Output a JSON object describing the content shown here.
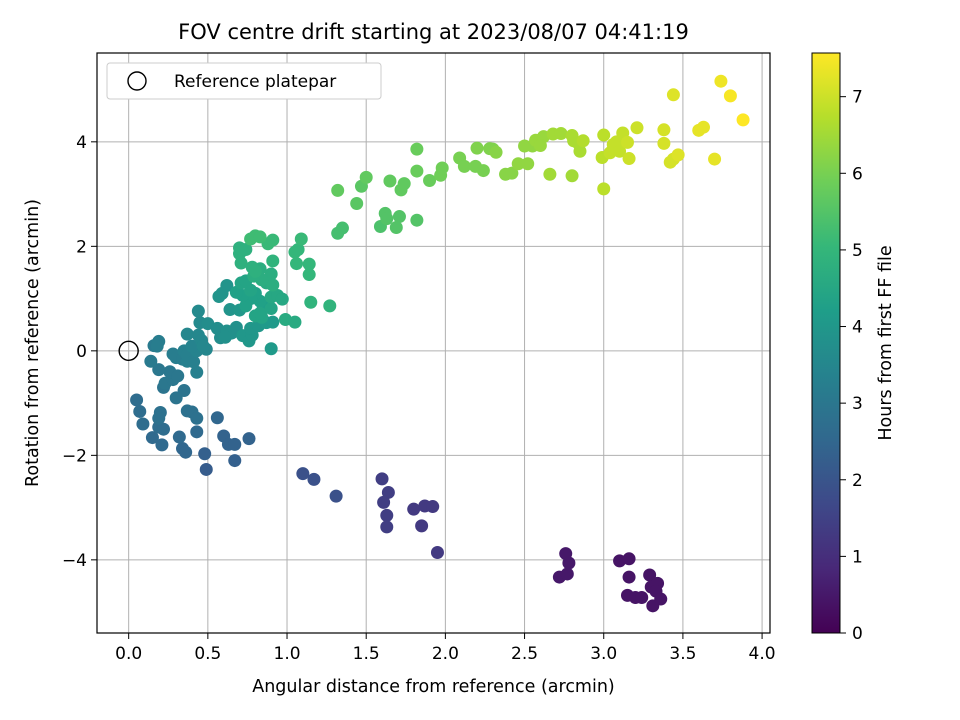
{
  "chart_data": {
    "type": "scatter",
    "title": "FOV centre drift starting at 2023/08/07 04:41:19",
    "xlabel": "Angular distance from reference (arcmin)",
    "ylabel": "Rotation from reference (arcmin)",
    "xlim": [
      -0.2,
      4.05
    ],
    "ylim": [
      -5.4,
      5.7
    ],
    "xticks": [
      0.0,
      0.5,
      1.0,
      1.5,
      2.0,
      2.5,
      3.0,
      3.5,
      4.0
    ],
    "xtick_labels": [
      "0.0",
      "0.5",
      "1.0",
      "1.5",
      "2.0",
      "2.5",
      "3.0",
      "3.5",
      "4.0"
    ],
    "yticks": [
      -4,
      -2,
      0,
      2,
      4
    ],
    "ytick_labels": [
      "−4",
      "−2",
      "0",
      "2",
      "4"
    ],
    "grid": true,
    "legend": {
      "label": "Reference platepar",
      "placement": "upper left"
    },
    "reference_point": {
      "x": 0.0,
      "y": 0.0,
      "marker": "open-circle"
    },
    "colorbar": {
      "label": "Hours from first FF file",
      "colormap": "viridis",
      "range": [
        0,
        7.57
      ],
      "ticks": [
        0,
        1,
        2,
        3,
        4,
        5,
        6,
        7
      ],
      "tick_labels": [
        "0",
        "1",
        "2",
        "3",
        "4",
        "5",
        "6",
        "7"
      ]
    },
    "colormap_stops": [
      "#440154",
      "#482878",
      "#3e4989",
      "#31688e",
      "#26828e",
      "#1f9e89",
      "#35b779",
      "#6ece58",
      "#b5de2b",
      "#fde725"
    ],
    "points": [
      [
        2.76,
        -3.88,
        0.5
      ],
      [
        2.78,
        -4.06,
        0.5
      ],
      [
        2.72,
        -4.33,
        0.5
      ],
      [
        2.77,
        -4.27,
        0.5
      ],
      [
        3.1,
        -4.02,
        0.4
      ],
      [
        3.16,
        -3.98,
        0.4
      ],
      [
        3.16,
        -4.33,
        0.4
      ],
      [
        3.15,
        -4.68,
        0.4
      ],
      [
        3.2,
        -4.72,
        0.4
      ],
      [
        3.24,
        -4.72,
        0.4
      ],
      [
        3.29,
        -4.29,
        0.4
      ],
      [
        3.3,
        -4.52,
        0.4
      ],
      [
        3.34,
        -4.45,
        0.4
      ],
      [
        3.33,
        -4.6,
        0.4
      ],
      [
        3.31,
        -4.88,
        0.4
      ],
      [
        3.36,
        -4.75,
        0.4
      ],
      [
        1.95,
        -3.86,
        1.3
      ],
      [
        1.85,
        -3.35,
        1.3
      ],
      [
        1.8,
        -3.03,
        1.3
      ],
      [
        1.87,
        -2.97,
        1.3
      ],
      [
        1.92,
        -2.98,
        1.3
      ],
      [
        1.6,
        -2.45,
        1.4
      ],
      [
        1.64,
        -2.71,
        1.4
      ],
      [
        1.61,
        -2.9,
        1.4
      ],
      [
        1.63,
        -3.15,
        1.4
      ],
      [
        1.63,
        -3.37,
        1.4
      ],
      [
        1.1,
        -2.35,
        1.9
      ],
      [
        1.17,
        -2.46,
        1.9
      ],
      [
        1.31,
        -2.78,
        1.9
      ],
      [
        0.49,
        -2.27,
        2.2
      ],
      [
        0.48,
        -1.97,
        2.3
      ],
      [
        0.67,
        -2.1,
        2.3
      ],
      [
        0.6,
        -1.63,
        2.4
      ],
      [
        0.63,
        -1.79,
        2.4
      ],
      [
        0.67,
        -1.79,
        2.4
      ],
      [
        0.76,
        -1.68,
        2.4
      ],
      [
        0.56,
        -1.28,
        2.5
      ],
      [
        0.34,
        -1.87,
        2.5
      ],
      [
        0.36,
        -1.94,
        2.5
      ],
      [
        0.32,
        -1.65,
        2.6
      ],
      [
        0.43,
        -1.55,
        2.6
      ],
      [
        0.21,
        -1.8,
        2.6
      ],
      [
        0.15,
        -1.66,
        2.6
      ],
      [
        0.19,
        -1.46,
        2.7
      ],
      [
        0.22,
        -1.5,
        2.7
      ],
      [
        0.09,
        -1.4,
        2.7
      ],
      [
        0.07,
        -1.16,
        2.7
      ],
      [
        0.05,
        -0.94,
        2.7
      ],
      [
        0.2,
        -1.18,
        2.8
      ],
      [
        0.19,
        -1.29,
        2.8
      ],
      [
        0.37,
        -1.15,
        2.8
      ],
      [
        0.4,
        -1.17,
        2.8
      ],
      [
        0.43,
        -1.29,
        2.8
      ],
      [
        0.3,
        -0.9,
        2.9
      ],
      [
        0.35,
        -0.76,
        2.9
      ],
      [
        0.22,
        -0.7,
        2.9
      ],
      [
        0.23,
        -0.62,
        3.0
      ],
      [
        0.28,
        -0.55,
        3.0
      ],
      [
        0.26,
        -0.4,
        3.0
      ],
      [
        0.31,
        -0.48,
        3.0
      ],
      [
        0.19,
        -0.36,
        3.0
      ],
      [
        0.14,
        -0.2,
        3.1
      ],
      [
        0.16,
        0.1,
        3.1
      ],
      [
        0.19,
        0.18,
        3.2
      ],
      [
        0.18,
        0.09,
        3.2
      ],
      [
        0.28,
        -0.06,
        3.2
      ],
      [
        0.3,
        -0.13,
        3.2
      ],
      [
        0.34,
        -0.16,
        3.2
      ],
      [
        0.37,
        -0.2,
        3.3
      ],
      [
        0.35,
        0.0,
        3.3
      ],
      [
        0.37,
        -0.08,
        3.3
      ],
      [
        0.43,
        -0.41,
        3.3
      ],
      [
        0.41,
        -0.21,
        3.3
      ],
      [
        0.43,
        0.0,
        3.4
      ],
      [
        0.4,
        0.09,
        3.4
      ],
      [
        0.37,
        0.32,
        3.5
      ],
      [
        0.44,
        0.3,
        3.5
      ],
      [
        0.46,
        0.2,
        3.5
      ],
      [
        0.49,
        0.03,
        3.5
      ],
      [
        0.47,
        0.09,
        3.5
      ],
      [
        0.45,
        0.54,
        3.6
      ],
      [
        0.44,
        0.76,
        3.6
      ],
      [
        0.5,
        0.52,
        3.7
      ],
      [
        0.56,
        0.43,
        3.7
      ],
      [
        0.58,
        0.25,
        3.7
      ],
      [
        0.62,
        0.38,
        3.8
      ],
      [
        0.65,
        0.34,
        3.8
      ],
      [
        0.68,
        0.45,
        3.8
      ],
      [
        0.61,
        0.26,
        3.8
      ],
      [
        0.57,
        1.04,
        3.9
      ],
      [
        0.59,
        1.1,
        3.9
      ],
      [
        0.62,
        1.25,
        3.9
      ],
      [
        0.64,
        0.79,
        3.9
      ],
      [
        0.7,
        0.78,
        4.0
      ],
      [
        0.72,
        0.29,
        4.0
      ],
      [
        0.76,
        0.19,
        4.0
      ],
      [
        0.78,
        0.3,
        4.0
      ],
      [
        0.77,
        0.43,
        4.0
      ],
      [
        0.82,
        0.48,
        4.0
      ],
      [
        0.9,
        0.04,
        4.1
      ],
      [
        0.87,
        0.54,
        4.1
      ],
      [
        0.91,
        0.55,
        4.1
      ],
      [
        0.85,
        0.82,
        4.2
      ],
      [
        0.86,
        0.9,
        4.2
      ],
      [
        0.83,
        0.95,
        4.3
      ],
      [
        0.8,
        1.1,
        4.3
      ],
      [
        0.77,
        1.0,
        4.3
      ],
      [
        0.74,
        0.86,
        4.3
      ],
      [
        0.72,
        1.06,
        4.3
      ],
      [
        0.68,
        1.12,
        4.3
      ],
      [
        0.71,
        1.3,
        4.4
      ],
      [
        0.74,
        1.34,
        4.4
      ],
      [
        0.77,
        1.16,
        4.4
      ],
      [
        0.84,
        0.64,
        4.4
      ],
      [
        0.8,
        0.67,
        4.4
      ],
      [
        0.83,
        0.72,
        4.4
      ],
      [
        0.9,
        0.81,
        4.4
      ],
      [
        0.9,
        1.03,
        4.5
      ],
      [
        0.94,
        1.06,
        4.5
      ],
      [
        0.97,
        0.99,
        4.5
      ],
      [
        0.99,
        0.6,
        4.6
      ],
      [
        1.05,
        0.55,
        4.6
      ],
      [
        0.87,
        1.3,
        4.6
      ],
      [
        0.91,
        1.26,
        4.7
      ],
      [
        0.9,
        1.47,
        4.7
      ],
      [
        0.84,
        1.36,
        4.7
      ],
      [
        0.79,
        1.43,
        4.7
      ],
      [
        0.83,
        1.57,
        4.7
      ],
      [
        0.78,
        1.6,
        4.8
      ],
      [
        0.71,
        1.68,
        4.8
      ],
      [
        0.7,
        1.86,
        4.8
      ],
      [
        0.7,
        1.97,
        4.8
      ],
      [
        0.74,
        1.94,
        4.8
      ],
      [
        0.8,
        1.52,
        4.8
      ],
      [
        0.91,
        1.72,
        4.9
      ],
      [
        1.15,
        0.93,
        4.9
      ],
      [
        1.27,
        0.86,
        4.9
      ],
      [
        1.14,
        1.46,
        5.0
      ],
      [
        1.14,
        1.66,
        5.0
      ],
      [
        1.06,
        1.67,
        5.0
      ],
      [
        1.05,
        1.89,
        5.0
      ],
      [
        1.07,
        1.94,
        5.0
      ],
      [
        1.09,
        2.14,
        5.1
      ],
      [
        0.88,
        2.05,
        5.1
      ],
      [
        0.91,
        2.12,
        5.1
      ],
      [
        0.77,
        2.14,
        5.2
      ],
      [
        0.8,
        2.2,
        5.2
      ],
      [
        0.83,
        2.18,
        5.2
      ],
      [
        1.32,
        2.25,
        5.3
      ],
      [
        1.35,
        2.35,
        5.3
      ],
      [
        1.59,
        2.38,
        5.4
      ],
      [
        1.62,
        2.63,
        5.5
      ],
      [
        1.63,
        2.53,
        5.5
      ],
      [
        1.69,
        2.36,
        5.5
      ],
      [
        1.71,
        2.57,
        5.5
      ],
      [
        1.82,
        2.5,
        5.5
      ],
      [
        1.44,
        2.82,
        5.6
      ],
      [
        1.47,
        3.15,
        5.6
      ],
      [
        1.5,
        3.32,
        5.7
      ],
      [
        1.32,
        3.07,
        5.7
      ],
      [
        1.65,
        3.25,
        5.7
      ],
      [
        1.72,
        3.08,
        5.7
      ],
      [
        1.74,
        3.2,
        5.7
      ],
      [
        1.82,
        3.44,
        5.8
      ],
      [
        1.82,
        3.86,
        5.8
      ],
      [
        1.9,
        3.26,
        5.8
      ],
      [
        1.97,
        3.36,
        5.9
      ],
      [
        1.98,
        3.5,
        5.9
      ],
      [
        2.09,
        3.69,
        6.0
      ],
      [
        2.12,
        3.53,
        6.0
      ],
      [
        2.19,
        3.53,
        6.0
      ],
      [
        2.24,
        3.45,
        6.0
      ],
      [
        2.2,
        3.88,
        6.1
      ],
      [
        2.28,
        3.87,
        6.1
      ],
      [
        2.3,
        3.86,
        6.1
      ],
      [
        2.32,
        3.8,
        6.2
      ],
      [
        2.38,
        3.38,
        6.2
      ],
      [
        2.42,
        3.4,
        6.2
      ],
      [
        2.46,
        3.58,
        6.3
      ],
      [
        2.52,
        3.58,
        6.3
      ],
      [
        2.5,
        3.92,
        6.3
      ],
      [
        2.55,
        3.92,
        6.3
      ],
      [
        2.57,
        4.03,
        6.4
      ],
      [
        2.62,
        4.1,
        6.4
      ],
      [
        2.6,
        3.93,
        6.4
      ],
      [
        2.66,
        3.38,
        6.5
      ],
      [
        2.68,
        4.15,
        6.5
      ],
      [
        2.73,
        4.16,
        6.5
      ],
      [
        2.8,
        3.35,
        6.5
      ],
      [
        2.8,
        4.12,
        6.6
      ],
      [
        2.81,
        4.02,
        6.6
      ],
      [
        2.84,
        3.97,
        6.6
      ],
      [
        2.85,
        3.82,
        6.6
      ],
      [
        2.87,
        4.02,
        6.7
      ],
      [
        3.0,
        3.1,
        6.8
      ],
      [
        2.99,
        3.7,
        6.8
      ],
      [
        3.0,
        4.13,
        6.8
      ],
      [
        3.04,
        3.79,
        6.9
      ],
      [
        3.06,
        3.95,
        6.9
      ],
      [
        3.08,
        4.0,
        6.9
      ],
      [
        3.12,
        4.17,
        6.9
      ],
      [
        3.1,
        3.82,
        6.9
      ],
      [
        3.15,
        3.99,
        7.0
      ],
      [
        3.16,
        3.68,
        7.0
      ],
      [
        3.21,
        4.27,
        7.0
      ],
      [
        3.38,
        3.97,
        7.1
      ],
      [
        3.38,
        4.23,
        7.1
      ],
      [
        3.42,
        3.61,
        7.1
      ],
      [
        3.44,
        3.67,
        7.1
      ],
      [
        3.47,
        3.75,
        7.2
      ],
      [
        3.44,
        4.9,
        7.2
      ],
      [
        3.6,
        4.22,
        7.3
      ],
      [
        3.63,
        4.28,
        7.3
      ],
      [
        3.7,
        3.67,
        7.3
      ],
      [
        3.74,
        5.16,
        7.4
      ],
      [
        3.8,
        4.88,
        7.5
      ],
      [
        3.88,
        4.42,
        7.57
      ]
    ]
  }
}
